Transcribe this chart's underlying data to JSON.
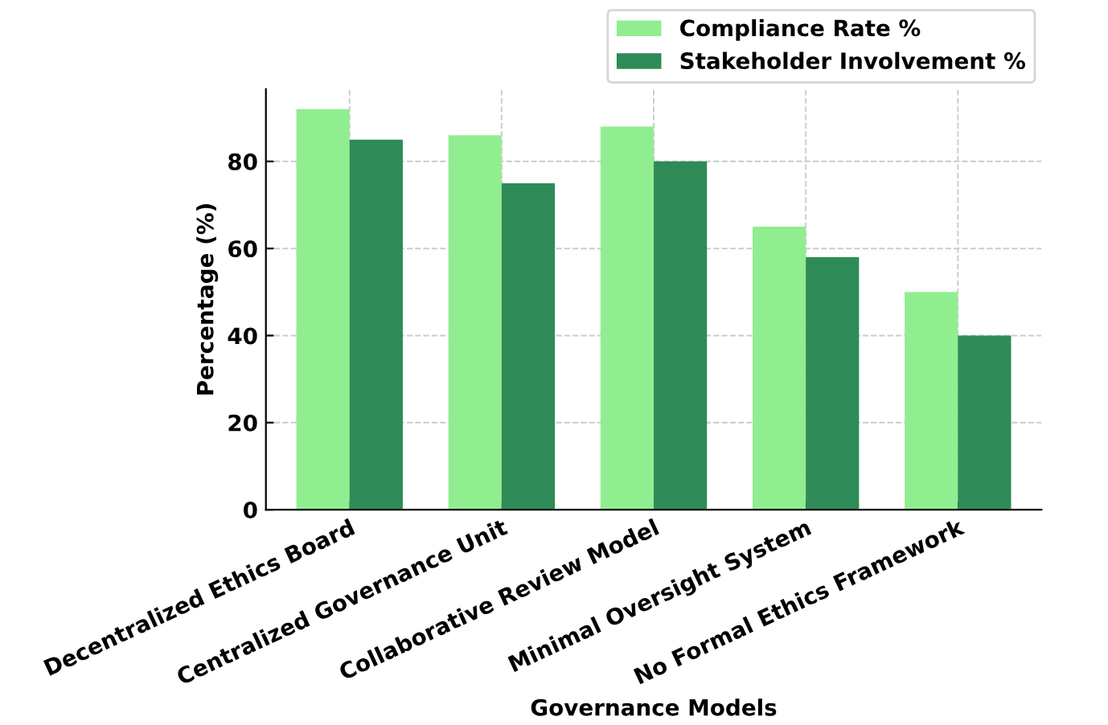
{
  "chart_data": {
    "type": "bar",
    "xlabel": "Governance Models",
    "ylabel": "Percentage (%)",
    "categories": [
      "Decentralized Ethics Board",
      "Centralized Governance Unit",
      "Collaborative Review Model",
      "Minimal Oversight System",
      "No Formal Ethics Framework"
    ],
    "series": [
      {
        "name": "Compliance Rate %",
        "color": "#90ee90",
        "values": [
          92,
          86,
          88,
          65,
          50
        ]
      },
      {
        "name": "Stakeholder Involvement %",
        "color": "#2e8b57",
        "values": [
          85,
          75,
          80,
          58,
          40
        ]
      }
    ],
    "ylim": [
      0,
      96.6
    ],
    "yticks": [
      0,
      20,
      40,
      60,
      80
    ],
    "grid": true,
    "legend": "top right"
  }
}
